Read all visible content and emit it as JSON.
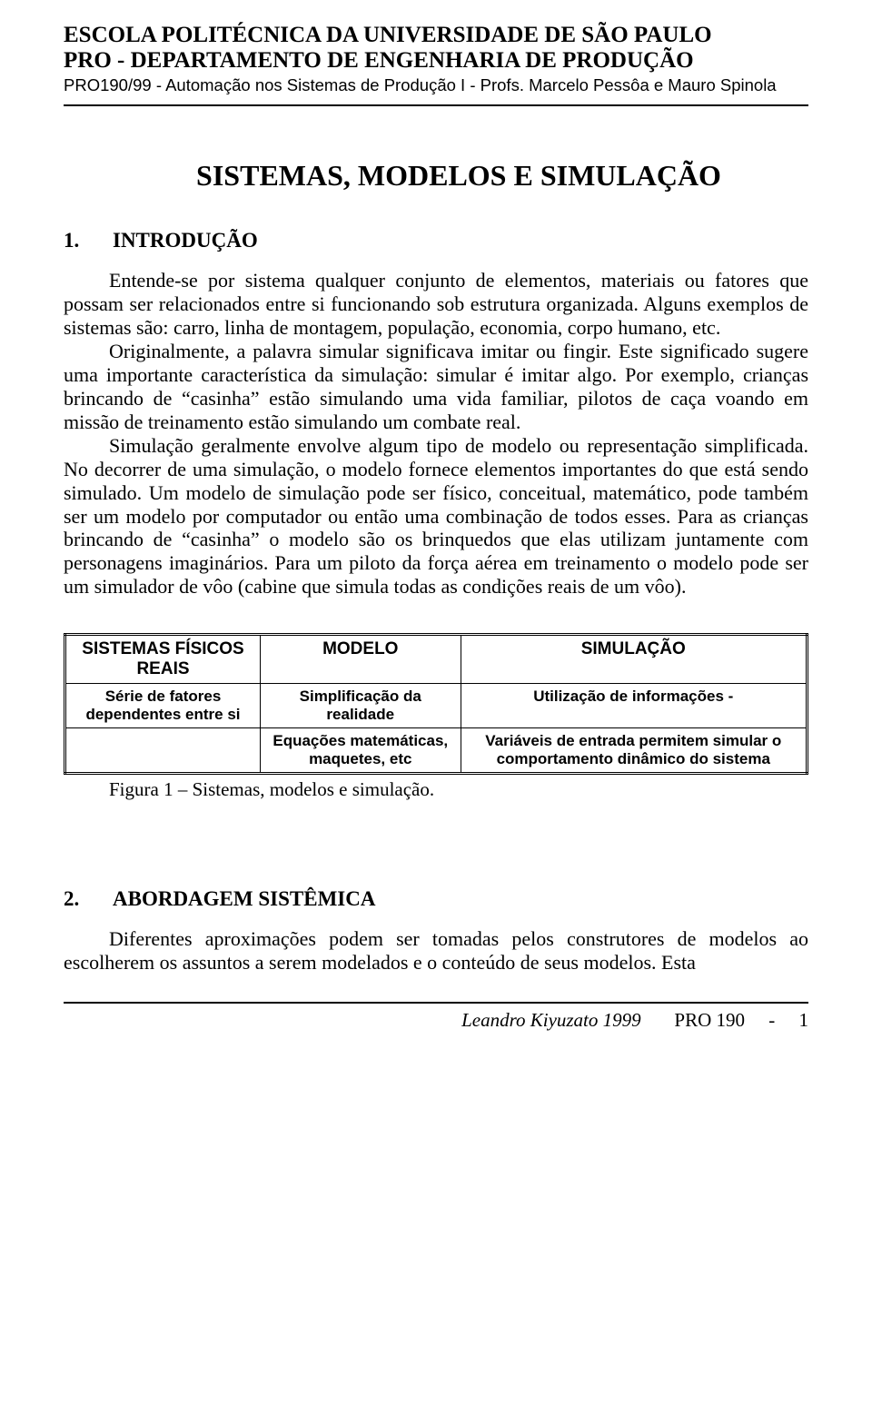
{
  "header": {
    "line1": "ESCOLA POLITÉCNICA DA UNIVERSIDADE DE SÃO PAULO",
    "line2": "PRO - DEPARTAMENTO DE ENGENHARIA DE PRODUÇÃO",
    "line3": "PRO190/99 - Automação nos Sistemas de Produção I - Profs. Marcelo Pessôa e Mauro Spinola"
  },
  "title": "SISTEMAS, MODELOS E SIMULAÇÃO",
  "section1": {
    "num": "1.",
    "title": "INTRODUÇÃO",
    "para1": "Entende-se por sistema qualquer conjunto de elementos, materiais ou fatores que possam ser relacionados entre si funcionando sob estrutura organizada. Alguns exemplos de sistemas são: carro, linha de montagem, população, economia, corpo humano, etc.",
    "para2": "Originalmente, a palavra simular significava imitar ou fingir. Este significado sugere uma importante característica da simulação: simular é imitar algo. Por exemplo, crianças brincando de “casinha” estão simulando uma vida familiar, pilotos de caça voando em missão de treinamento estão simulando um combate real.",
    "para3": "Simulação geralmente envolve algum tipo de modelo ou representação simplificada. No decorrer de uma simulação, o modelo fornece elementos importantes do que está sendo simulado. Um modelo de simulação pode ser físico, conceitual, matemático, pode também ser um modelo por computador ou então uma combinação de todos esses. Para as crianças brincando de “casinha” o modelo são os brinquedos que elas utilizam juntamente com personagens imaginários. Para um piloto da força aérea em treinamento o modelo pode ser um simulador de vôo (cabine que simula todas as condições reais de um vôo)."
  },
  "table": {
    "r1c1": "SISTEMAS FÍSICOS REAIS",
    "r1c2": "MODELO",
    "r1c3": "SIMULAÇÃO",
    "r2c1": "Série de fatores dependentes entre si",
    "r2c2": "Simplificação da realidade",
    "r2c3": "Utilização de informações -",
    "r3c1": "",
    "r3c2": "Equações matemáticas, maquetes, etc",
    "r3c3": "Variáveis de entrada permitem simular o comportamento dinâmico do sistema"
  },
  "figcaption": "Figura 1 – Sistemas, modelos e simulação.",
  "section2": {
    "num": "2.",
    "title": "ABORDAGEM SISTÊMICA",
    "para1": "Diferentes aproximações podem ser tomadas pelos construtores de modelos ao escolherem os assuntos a serem modelados e o conteúdo de seus modelos. Esta"
  },
  "footer": {
    "author": "Leandro Kiyuzato 1999",
    "code": "PRO 190",
    "sep": "-",
    "page": "1"
  }
}
